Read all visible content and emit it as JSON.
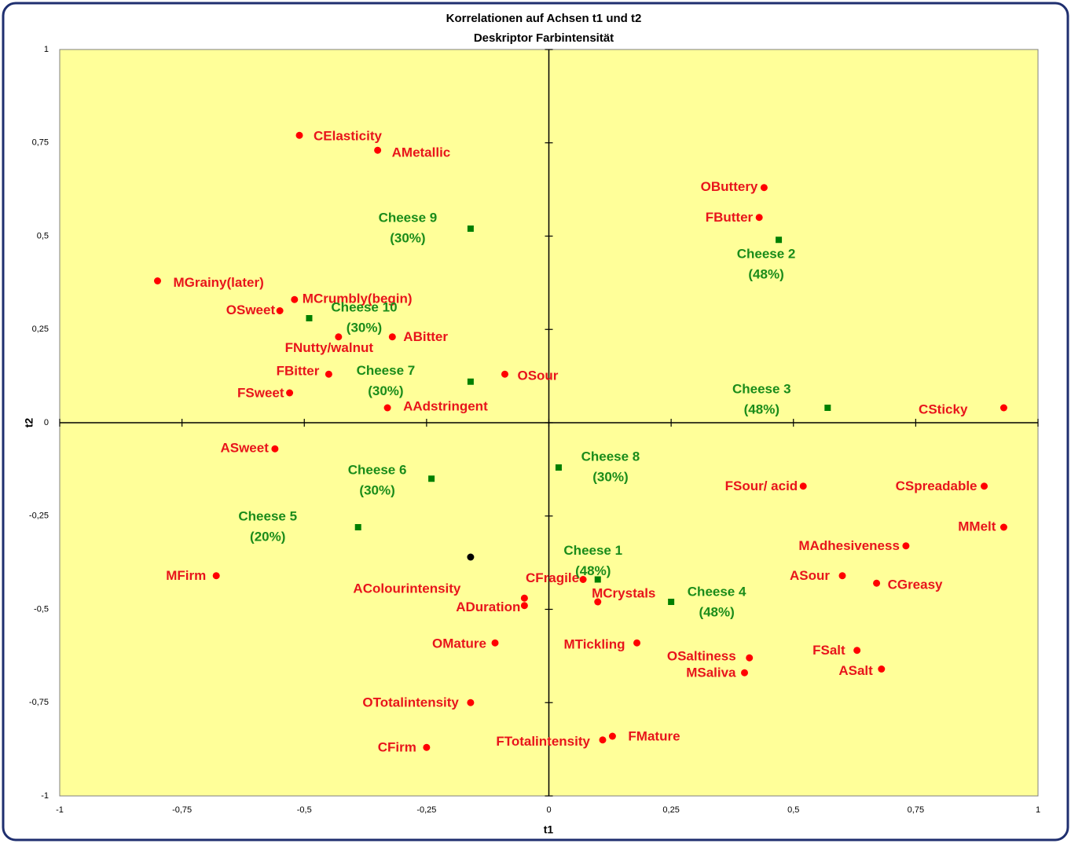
{
  "chart_data": {
    "type": "scatter",
    "title": "Korrelationen auf Achsen t1 und t2",
    "subtitle": "Deskriptor Farbintensität",
    "x_label": "t1",
    "y_label": "t2",
    "xlim": [
      -1,
      1
    ],
    "ylim": [
      -1,
      1
    ],
    "xticks": [
      -1,
      {
        "value": -0.75,
        "label": "-0,75"
      },
      {
        "value": -0.5,
        "label": "-0,5"
      },
      {
        "value": -0.25,
        "label": "-0,25"
      },
      0,
      {
        "value": 0.25,
        "label": "0,25"
      },
      {
        "value": 0.5,
        "label": "0,5"
      },
      {
        "value": 0.75,
        "label": "0,75"
      },
      1
    ],
    "yticks": [
      -1,
      {
        "value": -0.75,
        "label": "-0,75"
      },
      {
        "value": -0.5,
        "label": "-0,5"
      },
      {
        "value": -0.25,
        "label": "-0,25"
      },
      0,
      {
        "value": 0.25,
        "label": "0,25"
      },
      {
        "value": 0.5,
        "label": "0,5"
      },
      {
        "value": 0.75,
        "label": "0,75"
      },
      1
    ],
    "grid": false,
    "background": "#ffff99",
    "series": [
      {
        "color": "#ff0000",
        "marker": "circle",
        "labels": [
          "CElasticity",
          "AMetallic",
          "OButtery",
          "FButter",
          "MGrainy(later)",
          "MCrumbly(begin)",
          "OSweet",
          "FNutty/walnut",
          "ABitter",
          "FBitter",
          "OSour",
          "FSweet",
          "AAdstringent",
          "CSticky",
          "ASweet",
          "FSour/ acid",
          "CSpreadable",
          "MMelt",
          "MAdhesiveness",
          "MFirm",
          "ASour",
          "CGreasy",
          "CFragile",
          "MCrystals",
          "AColourintensity",
          "ADuration",
          "OMature",
          "MTickling",
          "OSaltiness",
          "MSaliva",
          "FSalt",
          "ASalt",
          "OTotalintensity",
          "FTotalintensity",
          "FMature",
          "CFirm"
        ],
        "x": [
          -0.51,
          -0.35,
          0.44,
          0.43,
          -0.8,
          -0.52,
          -0.55,
          -0.43,
          -0.32,
          -0.45,
          -0.09,
          -0.53,
          -0.33,
          0.93,
          -0.56,
          0.52,
          0.89,
          0.93,
          0.73,
          -0.68,
          0.6,
          0.67,
          0.07,
          0.1,
          -0.05,
          -0.05,
          -0.11,
          0.18,
          0.41,
          0.4,
          0.63,
          0.68,
          -0.16,
          0.11,
          0.13,
          -0.25
        ],
        "values": [
          0.77,
          0.73,
          0.63,
          0.55,
          0.38,
          0.33,
          0.3,
          0.23,
          0.23,
          0.13,
          0.13,
          0.08,
          0.04,
          0.04,
          -0.07,
          -0.17,
          -0.17,
          -0.28,
          -0.33,
          -0.41,
          -0.41,
          -0.43,
          -0.42,
          -0.48,
          -0.47,
          -0.49,
          -0.59,
          -0.59,
          -0.63,
          -0.67,
          -0.61,
          -0.66,
          -0.75,
          -0.85,
          -0.84,
          -0.87
        ]
      },
      {
        "color": "#008000",
        "marker": "square",
        "labels": [
          [
            "Cheese 9",
            "(30%)"
          ],
          [
            "Cheese 2",
            "(48%)"
          ],
          [
            "Cheese 10",
            "(30%)"
          ],
          [
            "Cheese 7",
            "(30%)"
          ],
          [
            "Cheese 3",
            "(48%)"
          ],
          [
            "Cheese 8",
            "(30%)"
          ],
          [
            "Cheese 6",
            "(30%)"
          ],
          [
            "Cheese 5",
            "(20%)"
          ],
          [
            "Cheese 1",
            "(48%)"
          ],
          [
            "Cheese 4",
            "(48%)"
          ]
        ],
        "x": [
          -0.16,
          0.47,
          -0.49,
          -0.16,
          0.57,
          0.02,
          -0.24,
          -0.39,
          0.1,
          0.25
        ],
        "values": [
          0.52,
          0.49,
          0.28,
          0.11,
          0.04,
          -0.12,
          -0.15,
          -0.28,
          -0.42,
          -0.48
        ]
      },
      {
        "color": "#000000",
        "marker": "circle",
        "x": [
          -0.16
        ],
        "values": [
          -0.36
        ]
      }
    ]
  }
}
